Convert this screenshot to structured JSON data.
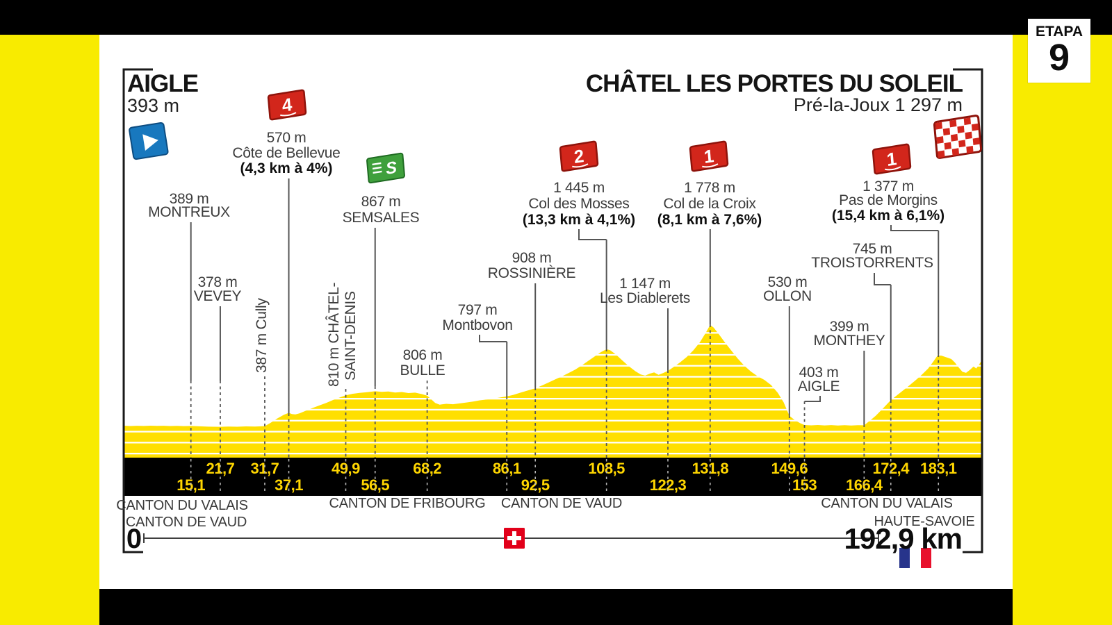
{
  "badge": {
    "label": "ETAPA",
    "number": "9"
  },
  "header": {
    "start_name": "AIGLE",
    "start_elevation": "393 m",
    "finish_name": "CHÂTEL LES PORTES DU SOLEIL",
    "finish_detail": "Pré-la-Joux 1 297 m"
  },
  "footer": {
    "regions": [
      "CANTON DU VALAIS",
      "CANTON DE VAUD",
      "CANTON DE FRIBOURG",
      "CANTON DE VAUD",
      "CANTON DU VALAIS",
      "HAUTE-SAVOIE"
    ],
    "scale_start": "0",
    "scale_total": "192,9 km",
    "icons": [
      "swiss-flag",
      "french-flag"
    ]
  },
  "colors": {
    "band_yellow": "#F8EB00",
    "profile_yellow": "#FFDF00",
    "stripe_white": "#FFFFFF",
    "bar_black": "#000000",
    "km_text_yellow": "#FFD600",
    "label_gray": "#3C3C3C",
    "line_gray": "#555555",
    "strip_dash_gray": "#B5B5B5",
    "frame_dark": "#1A1A1A",
    "flag_red": "#D2261B",
    "flag_red_dark": "#8E130B",
    "sprint_green": "#3FA03C",
    "sprint_green_dark": "#1F6B22",
    "start_blue": "#1878BE",
    "start_blue_dark": "#0D4C80",
    "swiss_red": "#E2001A",
    "france_blue": "#27348B",
    "france_red": "#E8112D"
  },
  "chart_data": {
    "type": "area",
    "title": "AIGLE → CHÂTEL LES PORTES DU SOLEIL",
    "xlabel": "km",
    "ylabel": "m",
    "x_range": [
      0,
      192.9
    ],
    "grid": false,
    "start": {
      "name": "AIGLE",
      "elevation_m": 393,
      "km": 0
    },
    "finish": {
      "name": "CHÂTEL LES PORTES DU SOLEIL",
      "site": "Pré-la-Joux",
      "elevation_m": 1297,
      "km": 192.9
    },
    "waypoints": [
      {
        "km": 15.1,
        "elev_m": 389,
        "lines": [
          "389 m",
          "MONTREUX"
        ]
      },
      {
        "km": 21.7,
        "elev_m": 378,
        "lines": [
          "378 m",
          "VEVEY"
        ]
      },
      {
        "km": 31.7,
        "elev_m": 387,
        "lines": [
          "387 m Cully"
        ],
        "rotated": true
      },
      {
        "km": 37.1,
        "elev_m": 570,
        "lines": [
          "570 m",
          "Côte de Bellevue",
          "(4,3 km à 4%)"
        ],
        "category": "4"
      },
      {
        "km": 49.9,
        "elev_m": 810,
        "lines": [
          "810 m CHÂTEL-",
          "SAINT-DENIS"
        ],
        "rotated": true
      },
      {
        "km": 56.5,
        "elev_m": 867,
        "lines": [
          "867 m",
          "SEMSALES"
        ],
        "sprint": true
      },
      {
        "km": 68.2,
        "elev_m": 806,
        "lines": [
          "806 m",
          "BULLE"
        ]
      },
      {
        "km": 86.1,
        "elev_m": 797,
        "lines": [
          "797 m",
          "Montbovon"
        ]
      },
      {
        "km": 92.5,
        "elev_m": 908,
        "lines": [
          "908 m",
          "ROSSINIÈRE"
        ]
      },
      {
        "km": 108.5,
        "elev_m": 1445,
        "lines": [
          "1 445 m",
          "Col des Mosses",
          "(13,3 km à 4,1%)"
        ],
        "category": "2"
      },
      {
        "km": 122.3,
        "elev_m": 1147,
        "lines": [
          "1 147 m",
          "Les Diablerets"
        ]
      },
      {
        "km": 131.8,
        "elev_m": 1778,
        "lines": [
          "1 778 m",
          "Col de la Croix",
          "(8,1 km à 7,6%)"
        ],
        "category": "1"
      },
      {
        "km": 149.6,
        "elev_m": 530,
        "lines": [
          "530 m",
          "OLLON"
        ]
      },
      {
        "km": 153,
        "elev_m": 403,
        "lines": [
          "403 m",
          "AIGLE"
        ]
      },
      {
        "km": 166.4,
        "elev_m": 399,
        "lines": [
          "399 m",
          "MONTHEY"
        ]
      },
      {
        "km": 172.4,
        "elev_m": 745,
        "lines": [
          "745 m",
          "TROISTORRENTS"
        ]
      },
      {
        "km": 183.1,
        "elev_m": 1377,
        "lines": [
          "1 377 m",
          "Pas de Morgins",
          "(15,4 km à 6,1%)"
        ],
        "category": "1"
      }
    ],
    "km_ticks": [
      {
        "label": "15,1",
        "km": 15.1,
        "row": 2
      },
      {
        "label": "21,7",
        "km": 21.7,
        "row": 1
      },
      {
        "label": "31,7",
        "km": 31.7,
        "row": 1
      },
      {
        "label": "37,1",
        "km": 37.1,
        "row": 2
      },
      {
        "label": "49,9",
        "km": 49.9,
        "row": 1
      },
      {
        "label": "56,5",
        "km": 56.5,
        "row": 2
      },
      {
        "label": "68,2",
        "km": 68.2,
        "row": 1
      },
      {
        "label": "86,1",
        "km": 86.1,
        "row": 1
      },
      {
        "label": "92,5",
        "km": 92.5,
        "row": 2
      },
      {
        "label": "108,5",
        "km": 108.5,
        "row": 1
      },
      {
        "label": "122,3",
        "km": 122.3,
        "row": 2
      },
      {
        "label": "131,8",
        "km": 131.8,
        "row": 1
      },
      {
        "label": "149,6",
        "km": 149.6,
        "row": 1
      },
      {
        "label": "153",
        "km": 153,
        "row": 2
      },
      {
        "label": "166,4",
        "km": 166.4,
        "row": 2
      },
      {
        "label": "172,4",
        "km": 172.4,
        "row": 1
      },
      {
        "label": "183,1",
        "km": 183.1,
        "row": 1
      }
    ],
    "profile_km_m": [
      [
        0,
        393
      ],
      [
        1.5,
        388
      ],
      [
        3,
        392
      ],
      [
        4.5,
        389
      ],
      [
        6,
        393
      ],
      [
        7.5,
        390
      ],
      [
        9,
        392
      ],
      [
        10.5,
        388
      ],
      [
        12,
        391
      ],
      [
        13.5,
        387
      ],
      [
        15.1,
        389
      ],
      [
        17,
        384
      ],
      [
        19,
        380
      ],
      [
        21.7,
        378
      ],
      [
        23.5,
        381
      ],
      [
        25.5,
        379
      ],
      [
        27.5,
        383
      ],
      [
        29.5,
        381
      ],
      [
        31.7,
        387
      ],
      [
        33,
        432
      ],
      [
        34.5,
        492
      ],
      [
        36,
        543
      ],
      [
        37.1,
        570
      ],
      [
        37.8,
        553
      ],
      [
        38.6,
        549
      ],
      [
        39.5,
        562
      ],
      [
        41,
        600
      ],
      [
        42.5,
        638
      ],
      [
        44,
        672
      ],
      [
        45.5,
        706
      ],
      [
        47,
        745
      ],
      [
        48.5,
        780
      ],
      [
        49.9,
        810
      ],
      [
        51.5,
        832
      ],
      [
        53,
        845
      ],
      [
        54.5,
        852
      ],
      [
        56.5,
        867
      ],
      [
        58,
        858
      ],
      [
        59.5,
        863
      ],
      [
        61,
        850
      ],
      [
        62.5,
        856
      ],
      [
        64,
        842
      ],
      [
        65.5,
        848
      ],
      [
        67,
        828
      ],
      [
        68.2,
        806
      ],
      [
        69,
        762
      ],
      [
        70,
        706
      ],
      [
        71,
        682
      ],
      [
        72.5,
        694
      ],
      [
        74,
        688
      ],
      [
        75.5,
        700
      ],
      [
        77,
        712
      ],
      [
        78.5,
        724
      ],
      [
        80,
        742
      ],
      [
        81.5,
        752
      ],
      [
        83,
        766
      ],
      [
        84.5,
        780
      ],
      [
        86.1,
        797
      ],
      [
        87.5,
        816
      ],
      [
        89,
        844
      ],
      [
        90.5,
        872
      ],
      [
        92.5,
        908
      ],
      [
        94,
        946
      ],
      [
        95.5,
        988
      ],
      [
        97,
        1030
      ],
      [
        98.5,
        1072
      ],
      [
        100,
        1118
      ],
      [
        101.5,
        1166
      ],
      [
        103,
        1224
      ],
      [
        104.5,
        1288
      ],
      [
        106,
        1352
      ],
      [
        107.2,
        1404
      ],
      [
        108.5,
        1445
      ],
      [
        109.3,
        1432
      ],
      [
        110.5,
        1378
      ],
      [
        112,
        1294
      ],
      [
        113.5,
        1212
      ],
      [
        115,
        1142
      ],
      [
        116.2,
        1098
      ],
      [
        117.2,
        1082
      ],
      [
        118.2,
        1108
      ],
      [
        119.2,
        1126
      ],
      [
        120.2,
        1092
      ],
      [
        121.2,
        1116
      ],
      [
        122.3,
        1147
      ],
      [
        123.5,
        1196
      ],
      [
        125,
        1262
      ],
      [
        126.5,
        1336
      ],
      [
        128,
        1428
      ],
      [
        129.5,
        1542
      ],
      [
        130.7,
        1660
      ],
      [
        131.8,
        1778
      ],
      [
        132.6,
        1742
      ],
      [
        133.8,
        1648
      ],
      [
        135,
        1548
      ],
      [
        136.5,
        1430
      ],
      [
        138,
        1316
      ],
      [
        139.5,
        1216
      ],
      [
        141,
        1136
      ],
      [
        142.5,
        1072
      ],
      [
        144,
        1022
      ],
      [
        145.5,
        952
      ],
      [
        147,
        846
      ],
      [
        148.3,
        716
      ],
      [
        149.6,
        530
      ],
      [
        150.8,
        470
      ],
      [
        152,
        428
      ],
      [
        153,
        403
      ],
      [
        154.5,
        398
      ],
      [
        156,
        403
      ],
      [
        157.5,
        397
      ],
      [
        159,
        402
      ],
      [
        160.5,
        396
      ],
      [
        162,
        401
      ],
      [
        163.5,
        396
      ],
      [
        165,
        400
      ],
      [
        166.4,
        399
      ],
      [
        167.5,
        452
      ],
      [
        169,
        530
      ],
      [
        170.5,
        622
      ],
      [
        172.4,
        745
      ],
      [
        173.8,
        812
      ],
      [
        175.2,
        880
      ],
      [
        176.6,
        948
      ],
      [
        178,
        1020
      ],
      [
        179.4,
        1096
      ],
      [
        180.8,
        1180
      ],
      [
        182,
        1278
      ],
      [
        183.1,
        1377
      ],
      [
        184,
        1352
      ],
      [
        185,
        1332
      ],
      [
        186,
        1310
      ],
      [
        186.8,
        1262
      ],
      [
        187.6,
        1198
      ],
      [
        188.5,
        1134
      ],
      [
        189.3,
        1120
      ],
      [
        190.2,
        1162
      ],
      [
        191,
        1208
      ],
      [
        191.6,
        1180
      ],
      [
        192.2,
        1232
      ],
      [
        192.9,
        1297
      ]
    ]
  }
}
